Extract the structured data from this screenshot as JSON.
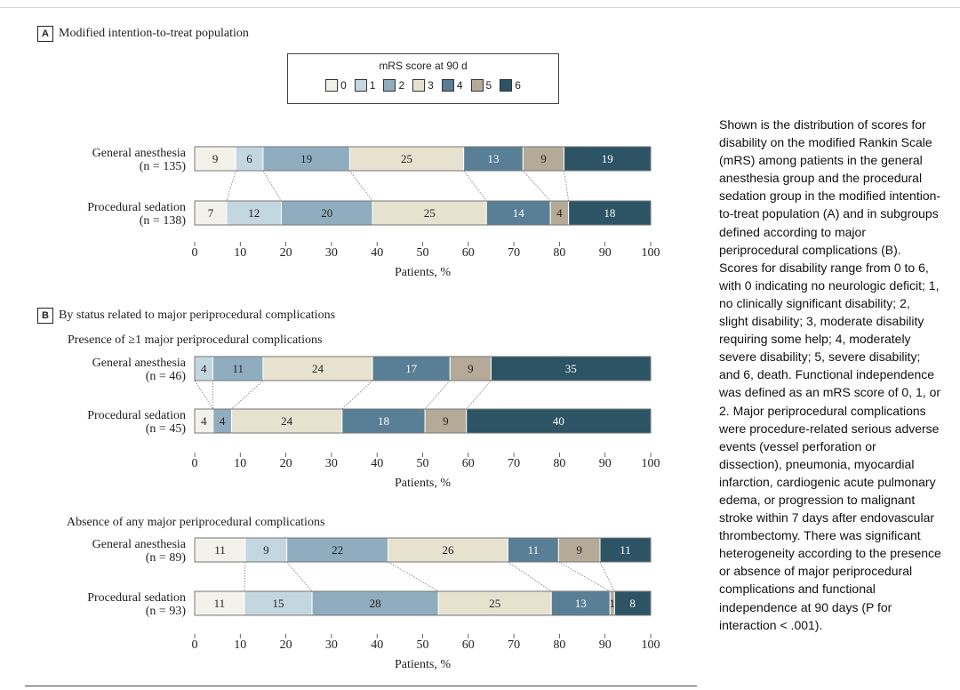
{
  "panel_a": {
    "letter": "A",
    "title": "Modified intention-to-treat population"
  },
  "panel_b": {
    "letter": "B",
    "title": "By status related to major periprocedural complications"
  },
  "legend": {
    "title": "mRS score at 90 d",
    "items": [
      {
        "label": "0",
        "color": "#f2f2ea"
      },
      {
        "label": "1",
        "color": "#c4d6e0"
      },
      {
        "label": "2",
        "color": "#8fadbf"
      },
      {
        "label": "3",
        "color": "#e7e1cf"
      },
      {
        "label": "4",
        "color": "#587f95"
      },
      {
        "label": "5",
        "color": "#b5aa97"
      },
      {
        "label": "6",
        "color": "#2c5465"
      }
    ]
  },
  "caption": "Shown is the distribution of scores for disability on the modified Rankin Scale (mRS) among patients in the general anesthesia group and the procedural sedation group in the modified intention-to-treat population (A) and in subgroups defined according to major periprocedural complications (B). Scores for disability range from 0 to 6, with 0 indicating no neurologic deficit; 1, no clinically significant disability; 2, slight disability; 3, moderate disability requiring some help; 4, moderately severe disability; 5, severe disability; and 6, death. Functional independence was defined as an mRS score of 0, 1, or 2. Major periprocedural complications were procedure-related serious adverse events (vessel perforation or dissection), pneumonia, myocardial infarction, cardiogenic acute pulmonary edema, or progression to malignant stroke within 7 days after endovascular thrombectomy. There was significant heterogeneity according to the presence or absence of major periprocedural complications and functional independence at 90 days (P for interaction < .001).",
  "chart_data": [
    {
      "type": "bar",
      "stacked": "horizontal",
      "subtitle": "",
      "xlabel": "Patients, %",
      "xlim": [
        0,
        100
      ],
      "xticks": [
        0,
        10,
        20,
        30,
        40,
        50,
        60,
        70,
        80,
        90,
        100
      ],
      "categories": [
        "0",
        "1",
        "2",
        "3",
        "4",
        "5",
        "6"
      ],
      "rows": [
        {
          "label": "General anesthesia",
          "n": "(n = 135)",
          "values": [
            9,
            6,
            19,
            25,
            13,
            9,
            19
          ],
          "labels": [
            "9",
            "6",
            "19",
            "25",
            "13",
            "9",
            "19"
          ]
        },
        {
          "label": "Procedural sedation",
          "n": "(n = 138)",
          "values": [
            7,
            12,
            20,
            25,
            14,
            4,
            18
          ],
          "labels": [
            "7",
            "12",
            "20",
            "25",
            "14",
            "4",
            "18"
          ]
        }
      ]
    },
    {
      "type": "bar",
      "stacked": "horizontal",
      "subtitle": "Presence of ≥1 major periprocedural complications",
      "xlabel": "Patients, %",
      "xlim": [
        0,
        100
      ],
      "xticks": [
        0,
        10,
        20,
        30,
        40,
        50,
        60,
        70,
        80,
        90,
        100
      ],
      "categories": [
        "0",
        "1",
        "2",
        "3",
        "4",
        "5",
        "6"
      ],
      "rows": [
        {
          "label": "General anesthesia",
          "n": "(n = 46)",
          "values": [
            0,
            4,
            11,
            24,
            17,
            9,
            35
          ],
          "labels": [
            "",
            "4",
            "11",
            "24",
            "17",
            "9",
            "35"
          ]
        },
        {
          "label": "Procedural sedation",
          "n": "(n = 45)",
          "values": [
            4,
            0,
            4,
            24,
            18,
            9,
            40
          ],
          "labels": [
            "4",
            "",
            "4",
            "24",
            "18",
            "9",
            "40"
          ]
        }
      ]
    },
    {
      "type": "bar",
      "stacked": "horizontal",
      "subtitle": "Absence of any major periprocedural complications",
      "xlabel": "Patients, %",
      "xlim": [
        0,
        100
      ],
      "xticks": [
        0,
        10,
        20,
        30,
        40,
        50,
        60,
        70,
        80,
        90,
        100
      ],
      "categories": [
        "0",
        "1",
        "2",
        "3",
        "4",
        "5",
        "6"
      ],
      "rows": [
        {
          "label": "General anesthesia",
          "n": "(n = 89)",
          "values": [
            11,
            9,
            22,
            26,
            11,
            9,
            11
          ],
          "labels": [
            "11",
            "9",
            "22",
            "26",
            "11",
            "9",
            "11"
          ]
        },
        {
          "label": "Procedural sedation",
          "n": "(n = 93)",
          "values": [
            11,
            15,
            28,
            25,
            13,
            1,
            8
          ],
          "labels": [
            "11",
            "15",
            "28",
            "25",
            "13",
            "1",
            "8"
          ]
        }
      ]
    }
  ]
}
